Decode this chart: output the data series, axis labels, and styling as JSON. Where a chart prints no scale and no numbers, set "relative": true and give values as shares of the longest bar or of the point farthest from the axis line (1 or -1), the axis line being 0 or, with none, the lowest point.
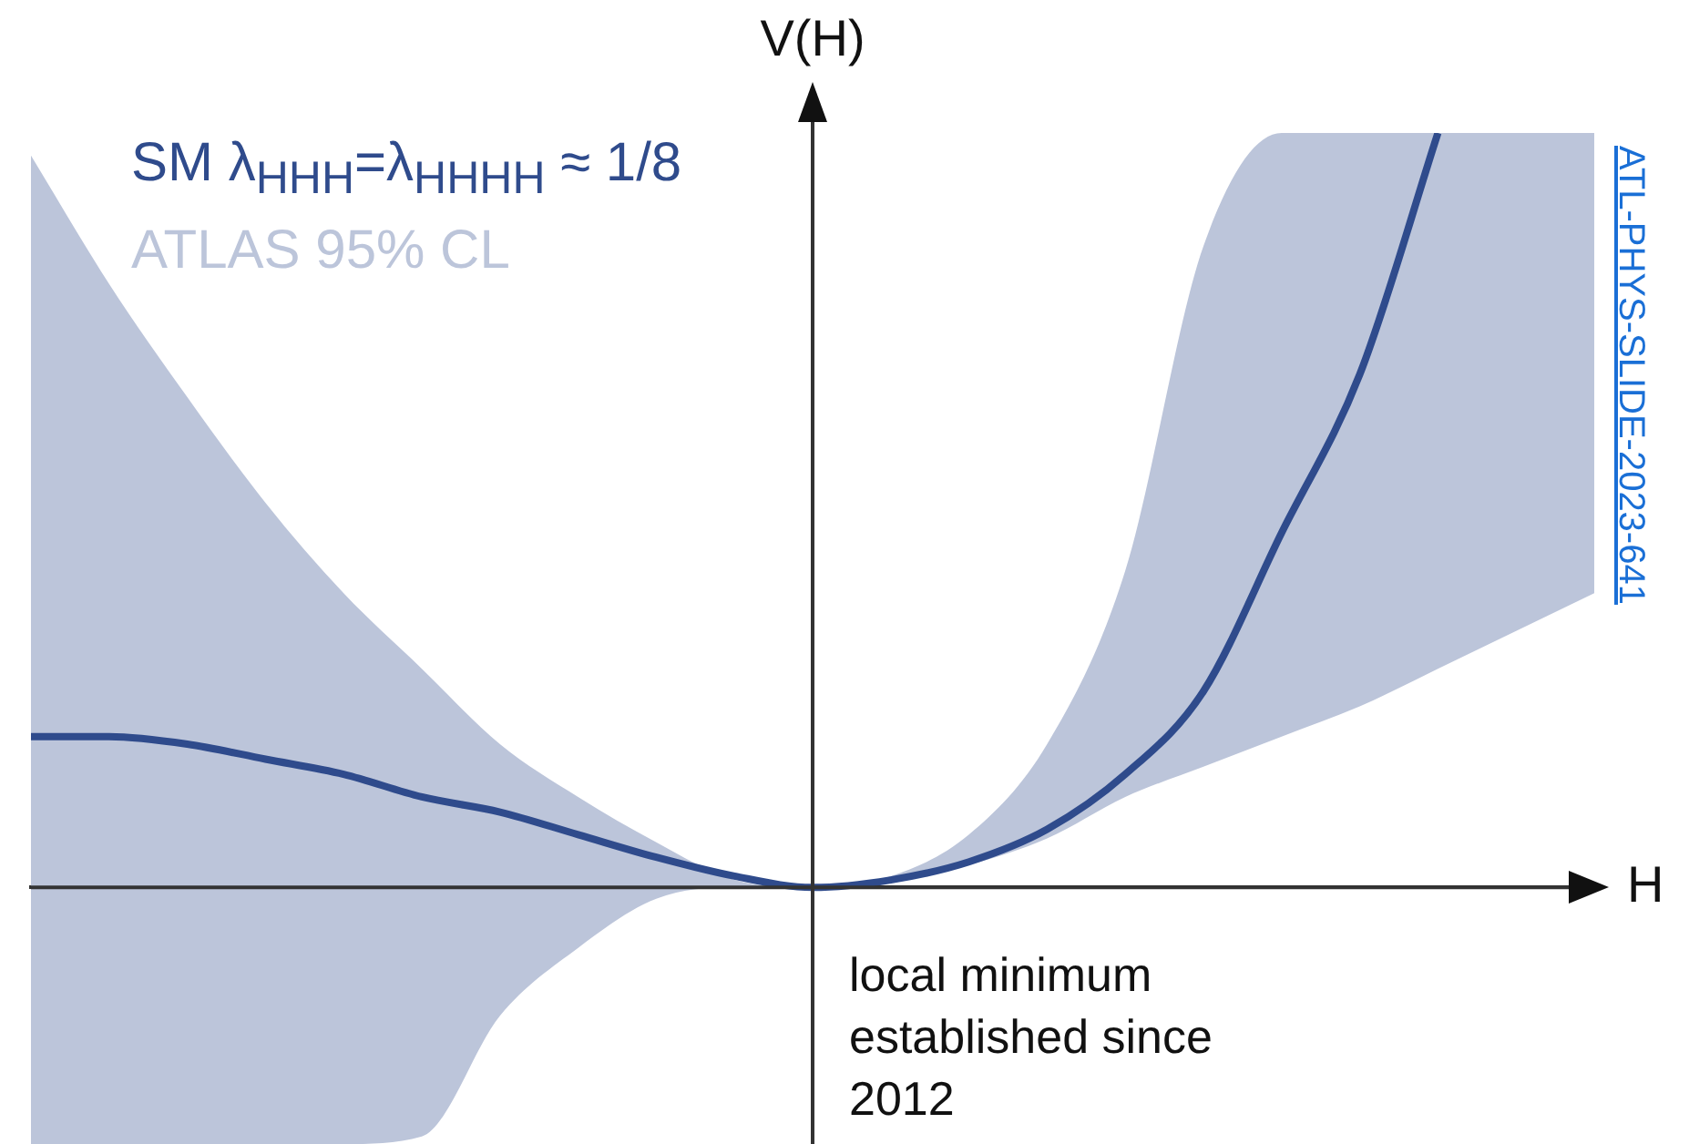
{
  "chart_data": {
    "type": "line",
    "xlabel": "H",
    "ylabel": "V(H)",
    "relative": true,
    "legend": "top left",
    "marker": "none",
    "categories": [
      null,
      null,
      null,
      null,
      null,
      null,
      null,
      null,
      null,
      null,
      null,
      null,
      null,
      null,
      null,
      null,
      null,
      null,
      null,
      null,
      null
    ],
    "series": [
      {
        "name": "SM λ$_{HHH}$=λ$_{HHHH}$ ≈ 1/8",
        "color": "#2f4b8c",
        "values": [
          0.2,
          0.2,
          0.19,
          0.17,
          0.15,
          0.12,
          0.1,
          0.07,
          0.04,
          0.015,
          0,
          0.01,
          0.034,
          0.077,
          0.15,
          0.26,
          0.47,
          0.68,
          1,
          null,
          null
        ],
        "lower": [
          -0.34,
          -0.34,
          -0.34,
          -0.34,
          -0.34,
          -0.33,
          -0.17,
          -0.08,
          -0.015,
          0,
          0,
          0.008,
          0.03,
          0.065,
          0.12,
          0.16,
          0.2,
          0.24,
          0.29,
          0.34,
          0.39
        ],
        "upper": [
          0.97,
          0.8,
          0.65,
          0.51,
          0.39,
          0.29,
          0.19,
          0.12,
          0.06,
          0.01,
          0,
          0.015,
          0.07,
          0.19,
          0.42,
          0.85,
          1,
          1,
          1,
          1,
          1
        ]
      }
    ],
    "annotations": [
      "ATLAS 95% CL",
      "local minimum established since 2012",
      "ATL-PHYS-SLIDE-2023-641"
    ]
  }
}
